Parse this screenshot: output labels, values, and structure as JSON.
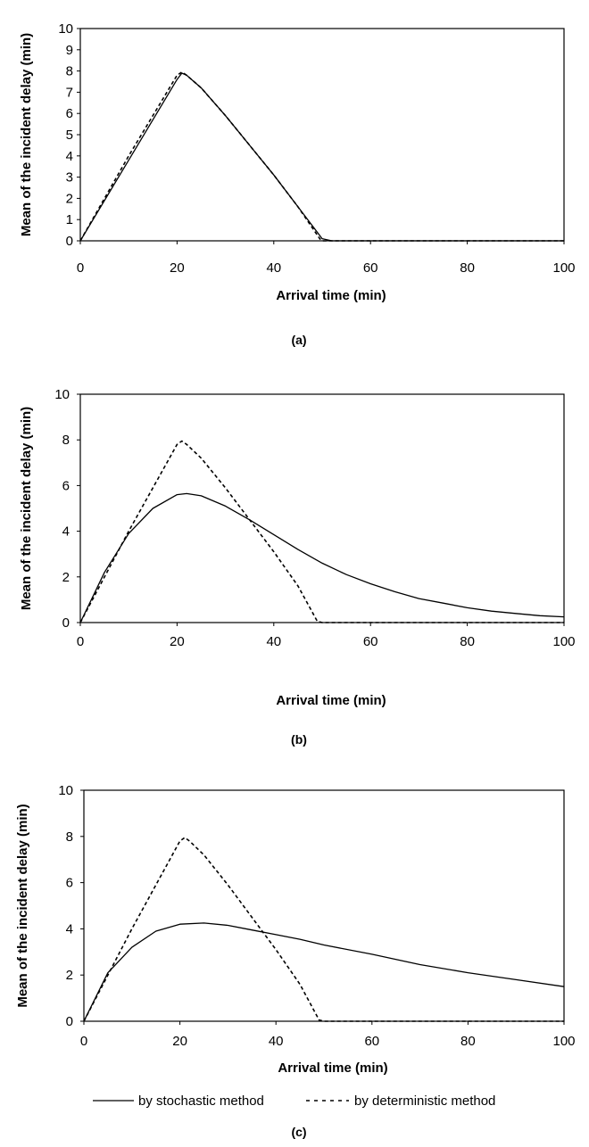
{
  "chart_data": [
    {
      "type": "line",
      "caption": "(a)",
      "xlabel": "Arrival time (min)",
      "ylabel": "Mean of the incident delay (min)",
      "xlim": [
        0,
        100
      ],
      "ylim": [
        0,
        10
      ],
      "xticks": [
        0,
        20,
        40,
        60,
        80,
        100
      ],
      "yticks": [
        0,
        1,
        2,
        3,
        4,
        5,
        6,
        7,
        8,
        9,
        10
      ],
      "grid": false,
      "series": [
        {
          "name": "by stochastic method",
          "style": "solid",
          "x": [
            0,
            5,
            10,
            15,
            20,
            21,
            22,
            25,
            30,
            35,
            40,
            45,
            50,
            52,
            60,
            80,
            100
          ],
          "y": [
            0,
            1.9,
            3.8,
            5.7,
            7.6,
            7.9,
            7.8,
            7.2,
            5.9,
            4.5,
            3.1,
            1.6,
            0.1,
            0,
            0,
            0,
            0
          ]
        },
        {
          "name": "by deterministic method",
          "style": "dashed",
          "x": [
            0,
            5,
            10,
            15,
            20,
            21,
            22,
            25,
            30,
            35,
            40,
            45,
            49.5,
            50,
            60,
            80,
            100
          ],
          "y": [
            0,
            2.0,
            4.0,
            5.9,
            7.8,
            7.95,
            7.8,
            7.2,
            5.9,
            4.5,
            3.1,
            1.6,
            0.1,
            0,
            0,
            0,
            0
          ]
        }
      ]
    },
    {
      "type": "line",
      "caption": "(b)",
      "xlabel": "Arrival time (min)",
      "ylabel": "Mean of the incident delay (min)",
      "xlim": [
        0,
        100
      ],
      "ylim": [
        0,
        10
      ],
      "xticks": [
        0,
        20,
        40,
        60,
        80,
        100
      ],
      "yticks": [
        0,
        2,
        4,
        6,
        8,
        10
      ],
      "grid": false,
      "series": [
        {
          "name": "by stochastic method",
          "style": "solid",
          "x": [
            0,
            5,
            10,
            15,
            20,
            22,
            25,
            30,
            35,
            40,
            45,
            50,
            55,
            60,
            65,
            70,
            75,
            80,
            85,
            90,
            95,
            100
          ],
          "y": [
            0,
            2.2,
            3.9,
            5.0,
            5.6,
            5.65,
            5.55,
            5.1,
            4.5,
            3.85,
            3.2,
            2.6,
            2.1,
            1.7,
            1.35,
            1.05,
            0.85,
            0.65,
            0.5,
            0.4,
            0.3,
            0.25
          ]
        },
        {
          "name": "by deterministic method",
          "style": "dashed",
          "x": [
            0,
            5,
            10,
            15,
            20,
            21,
            22,
            25,
            30,
            35,
            40,
            45,
            49,
            50,
            60,
            80,
            100
          ],
          "y": [
            0,
            2.0,
            4.0,
            5.9,
            7.8,
            7.95,
            7.8,
            7.2,
            5.9,
            4.5,
            3.1,
            1.6,
            0.05,
            0,
            0,
            0,
            0
          ]
        }
      ]
    },
    {
      "type": "line",
      "caption": "(c)",
      "xlabel": "Arrival time (min)",
      "ylabel": "Mean of the incident delay (min)",
      "xlim": [
        0,
        100
      ],
      "ylim": [
        0,
        10
      ],
      "xticks": [
        0,
        20,
        40,
        60,
        80,
        100
      ],
      "yticks": [
        0,
        2,
        4,
        6,
        8,
        10
      ],
      "grid": false,
      "series": [
        {
          "name": "by stochastic method",
          "style": "solid",
          "x": [
            0,
            5,
            10,
            15,
            20,
            25,
            30,
            35,
            40,
            45,
            50,
            60,
            70,
            80,
            90,
            100
          ],
          "y": [
            0,
            2.1,
            3.2,
            3.9,
            4.2,
            4.25,
            4.15,
            3.95,
            3.75,
            3.55,
            3.3,
            2.9,
            2.45,
            2.1,
            1.8,
            1.5
          ]
        },
        {
          "name": "by deterministic method",
          "style": "dashed",
          "x": [
            0,
            5,
            10,
            15,
            20,
            21,
            22,
            25,
            30,
            35,
            40,
            45,
            49,
            50,
            60,
            80,
            100
          ],
          "y": [
            0,
            2.0,
            4.0,
            5.9,
            7.8,
            7.95,
            7.8,
            7.2,
            5.9,
            4.5,
            3.1,
            1.6,
            0.05,
            0,
            0,
            0,
            0
          ]
        }
      ]
    }
  ],
  "legend": {
    "placement": "bottom",
    "entries": [
      {
        "label": "by stochastic method",
        "style": "solid"
      },
      {
        "label": "by deterministic method",
        "style": "dashed"
      }
    ]
  }
}
